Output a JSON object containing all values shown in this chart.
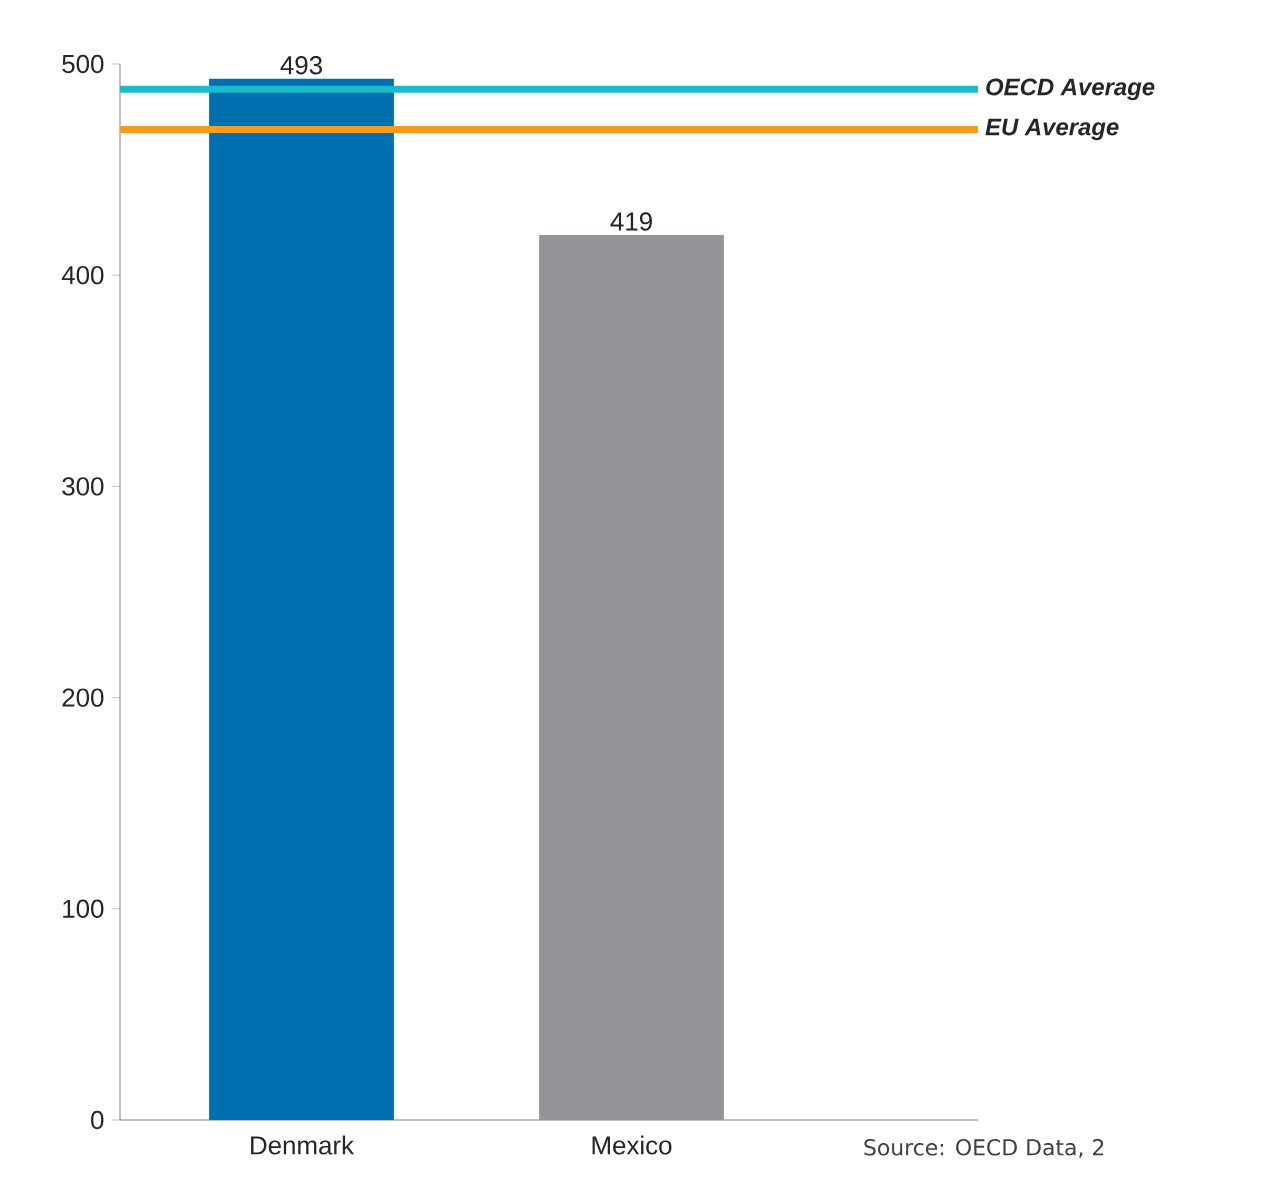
{
  "chart_data": {
    "type": "bar",
    "categories": [
      "Denmark",
      "Mexico"
    ],
    "values": [
      493,
      419
    ],
    "colors": [
      "#0070b0",
      "#939598"
    ],
    "ylim": [
      0,
      500
    ],
    "yticks": [
      0,
      100,
      200,
      300,
      400,
      500
    ],
    "data_labels": true,
    "ref_lines": [
      {
        "axis": "y",
        "value": 488,
        "label": "OECD Average",
        "color": "#1cb8cc"
      },
      {
        "axis": "y",
        "value": 469,
        "label": "EU Average",
        "color": "#f39c1e"
      }
    ],
    "annotations": [
      "Source: OECD Data, 2"
    ]
  }
}
